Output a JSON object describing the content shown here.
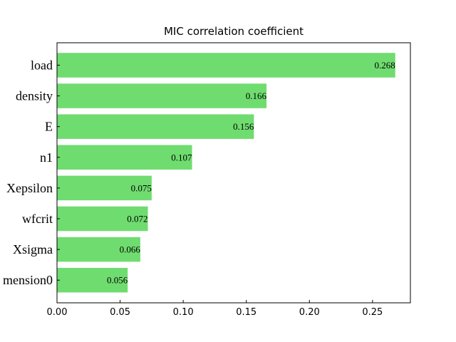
{
  "chart_data": {
    "type": "bar",
    "orientation": "horizontal",
    "title": "MIC correlation coefficient",
    "xlabel": "",
    "ylabel": "",
    "categories": [
      "load",
      "density",
      "E",
      "n1",
      "Xepsilon",
      "wfcrit",
      "Xsigma",
      "mension0"
    ],
    "values": [
      0.268,
      0.166,
      0.156,
      0.107,
      0.075,
      0.072,
      0.066,
      0.056
    ],
    "data_labels": [
      "0.268",
      "0.166",
      "0.156",
      "0.107",
      "0.075",
      "0.072",
      "0.066",
      "0.056"
    ],
    "xlim": [
      0,
      0.28
    ],
    "xticks": [
      0.0,
      0.05,
      0.1,
      0.15,
      0.2,
      0.25
    ],
    "xtick_labels": [
      "0.00",
      "0.05",
      "0.10",
      "0.15",
      "0.20",
      "0.25"
    ],
    "bar_color": "#6fdc6f",
    "grid": false,
    "legend": "none"
  }
}
